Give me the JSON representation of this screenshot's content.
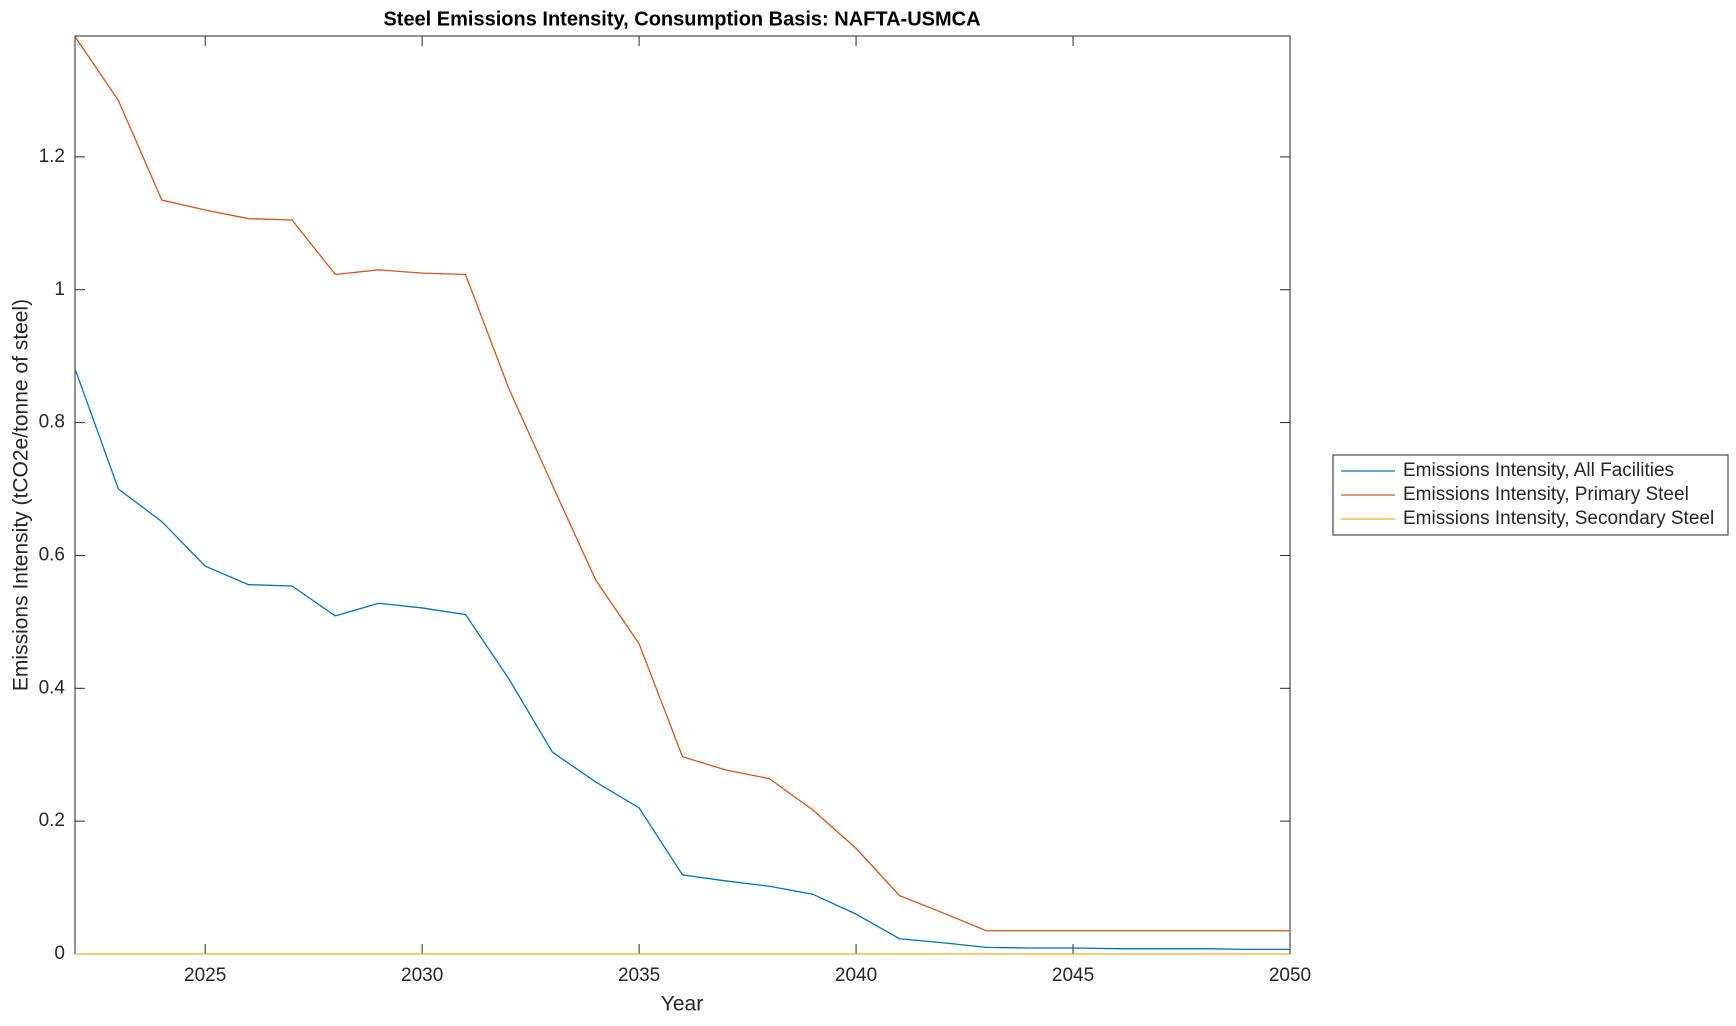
{
  "chart_data": {
    "type": "line",
    "title": "Steel Emissions Intensity, Consumption Basis: NAFTA-USMCA",
    "x_label": "Year",
    "y_label": "Emissions Intensity (tCO2e/tonne of steel)",
    "x": [
      2022,
      2023,
      2024,
      2025,
      2026,
      2027,
      2028,
      2029,
      2030,
      2031,
      2032,
      2033,
      2034,
      2035,
      2036,
      2037,
      2038,
      2039,
      2040,
      2041,
      2042,
      2043,
      2044,
      2045,
      2046,
      2047,
      2048,
      2049,
      2050
    ],
    "series": [
      {
        "name": "Emissions Intensity, All Facilities",
        "color": "#0072bd",
        "values": [
          0.881,
          0.7,
          0.651,
          0.584,
          0.556,
          0.554,
          0.509,
          0.528,
          0.521,
          0.511,
          0.414,
          0.304,
          0.259,
          0.22,
          0.119,
          0.11,
          0.102,
          0.09,
          0.06,
          0.023,
          0.017,
          0.01,
          0.009,
          0.009,
          0.008,
          0.008,
          0.008,
          0.007,
          0.007
        ]
      },
      {
        "name": "Emissions Intensity, Primary Steel",
        "color": "#d95319",
        "values": [
          1.381,
          1.285,
          1.135,
          1.12,
          1.107,
          1.105,
          1.023,
          1.03,
          1.025,
          1.023,
          0.851,
          0.706,
          0.563,
          0.467,
          0.297,
          0.277,
          0.264,
          0.217,
          0.159,
          0.088,
          0.062,
          0.035,
          0.035,
          0.035,
          0.035,
          0.035,
          0.035,
          0.035,
          0.035
        ]
      },
      {
        "name": "Emissions Intensity, Secondary Steel",
        "color": "#edb120",
        "values": [
          0,
          0,
          0,
          0,
          0,
          0,
          0,
          0,
          0,
          0,
          0,
          0,
          0,
          0,
          0,
          0,
          0,
          0,
          0,
          0,
          0,
          0,
          0,
          0,
          0,
          0,
          0,
          0,
          0
        ]
      }
    ],
    "xlim": [
      2022,
      2050
    ],
    "xticks": [
      2025,
      2030,
      2035,
      2040,
      2045,
      2050
    ],
    "ylim": [
      0,
      1.382
    ],
    "yticks": [
      0,
      0.2,
      0.4,
      0.6,
      0.8,
      1,
      1.2
    ],
    "grid": false,
    "legend": "eastoutside"
  }
}
